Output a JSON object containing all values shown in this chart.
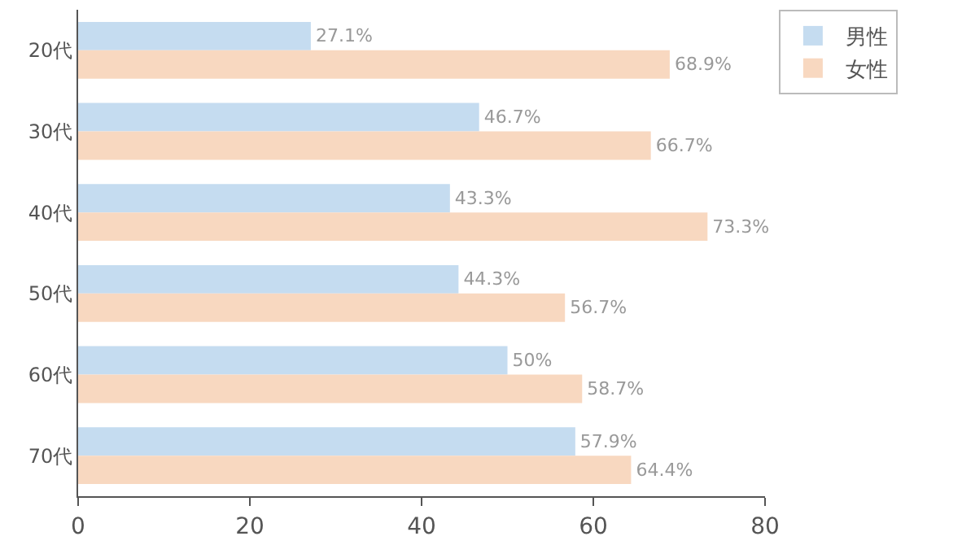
{
  "chart_data": {
    "type": "bar",
    "orientation": "horizontal",
    "categories": [
      "20代",
      "30代",
      "40代",
      "50代",
      "60代",
      "70代"
    ],
    "series": [
      {
        "name": "男性",
        "color": "#c5dcf0",
        "values": [
          27.1,
          46.7,
          43.3,
          44.3,
          50,
          57.9
        ],
        "value_labels": [
          "27.1%",
          "46.7%",
          "43.3%",
          "44.3%",
          "50%",
          "57.9%"
        ]
      },
      {
        "name": "女性",
        "color": "#f8d8c0",
        "values": [
          68.9,
          66.7,
          73.3,
          56.7,
          58.7,
          64.4
        ],
        "value_labels": [
          "68.9%",
          "66.7%",
          "73.3%",
          "56.7%",
          "58.7%",
          "64.4%"
        ]
      }
    ],
    "xlim": [
      0,
      80
    ],
    "xticks": [
      0,
      20,
      40,
      60,
      80
    ],
    "grid": false,
    "legend": "top right"
  }
}
